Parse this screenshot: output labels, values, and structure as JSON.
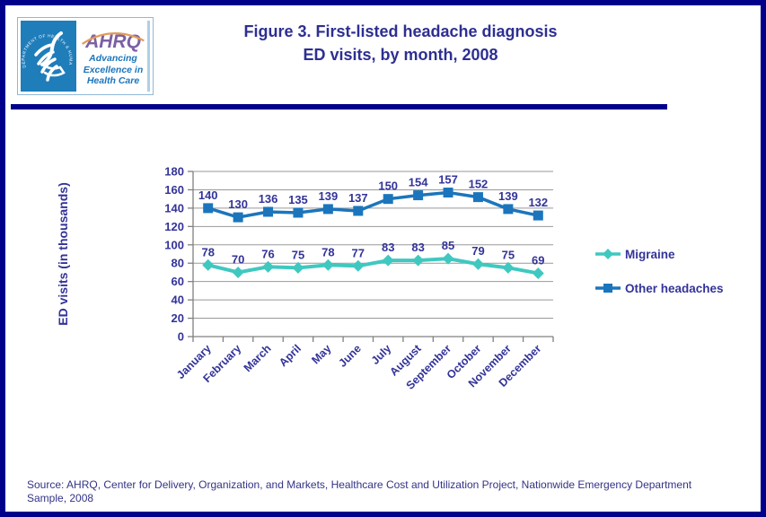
{
  "page": {
    "border_color": "#00008B",
    "background": "#FFFFFF"
  },
  "header": {
    "logo": {
      "seal_text": "DEPARTMENT OF HEALTH & HUMAN SERVICES · USA",
      "ahrq_acronym": "AHRQ",
      "tagline_line1": "Advancing",
      "tagline_line2": "Excellence in",
      "tagline_line3": "Health Care",
      "hhs_blue": "#1F7DBA",
      "ahrq_purple": "#7C5FA5",
      "arc_orange": "#E39B59",
      "tagline_blue": "#1B75BC"
    },
    "title_line1": "Figure 3. First-listed headache diagnosis",
    "title_line2": "ED visits, by month, 2008",
    "title_color": "#2D2F92"
  },
  "chart_data": {
    "type": "line",
    "title": "",
    "categories": [
      "January",
      "February",
      "March",
      "April",
      "May",
      "June",
      "July",
      "August",
      "September",
      "October",
      "November",
      "December"
    ],
    "series": [
      {
        "name": "Migraine",
        "color": "#3FC8C0",
        "marker": "diamond",
        "values": [
          78,
          70,
          76,
          75,
          78,
          77,
          83,
          83,
          85,
          79,
          75,
          69
        ]
      },
      {
        "name": "Other headaches",
        "color": "#1B75BC",
        "marker": "square",
        "values": [
          140,
          130,
          136,
          135,
          139,
          137,
          150,
          154,
          157,
          152,
          139,
          132
        ]
      }
    ],
    "xlabel": "",
    "ylabel": "ED visits (in thousands)",
    "ylim": [
      0,
      180
    ],
    "yticks": [
      0,
      20,
      40,
      60,
      80,
      100,
      120,
      140,
      160,
      180
    ],
    "grid": true,
    "data_labels": true,
    "legend_position": "right",
    "text_color": "#333399",
    "grid_color": "#999999",
    "axis_color": "#808080"
  },
  "footer": {
    "source_line1": "Source: AHRQ, Center for Delivery, Organization, and Markets, Healthcare Cost and Utilization Project, Nationwide Emergency Department",
    "source_line2": "Sample, 2008"
  }
}
